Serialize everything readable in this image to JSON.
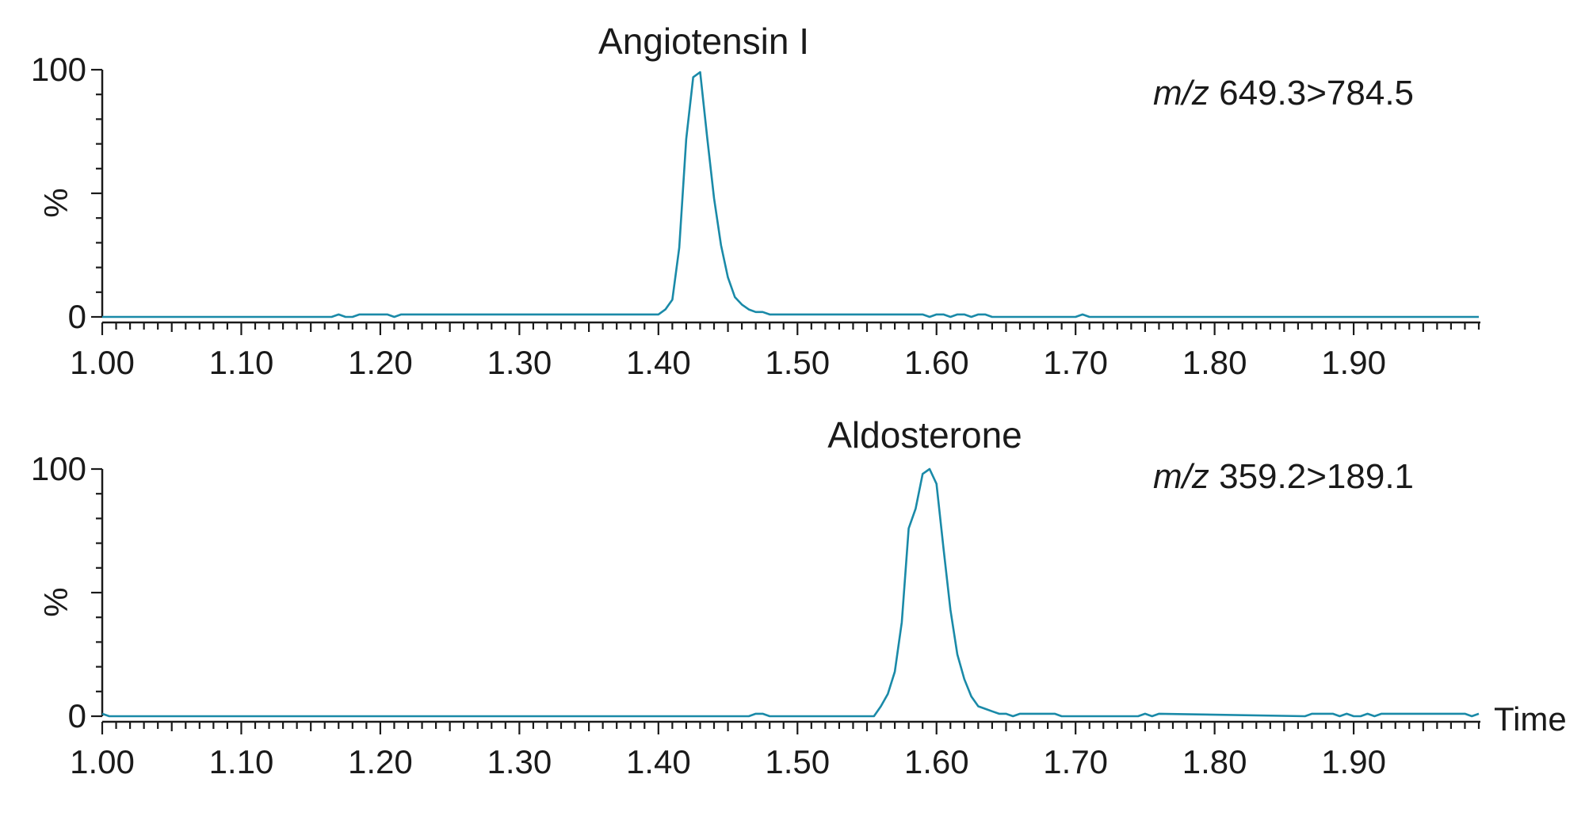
{
  "chart_data": [
    {
      "type": "line",
      "title": "Angiotensin I",
      "annotation": {
        "italic": "m/z",
        "text": " 649.3>784.5"
      },
      "ylabel": "%",
      "xlabel": "",
      "xlim": [
        1.0,
        1.99
      ],
      "ylim": [
        0,
        100
      ],
      "xticks": [
        1.0,
        1.1,
        1.2,
        1.3,
        1.4,
        1.5,
        1.6,
        1.7,
        1.8,
        1.9
      ],
      "xtick_labels": [
        "1.00",
        "1.10",
        "1.20",
        "1.30",
        "1.40",
        "1.50",
        "1.60",
        "1.70",
        "1.80",
        "1.90"
      ],
      "yticks": [
        0,
        100
      ],
      "ytick_labels": [
        "0",
        "100"
      ],
      "color": "#1a8aa8",
      "series": [
        {
          "x": [
            1.0,
            1.165,
            1.17,
            1.175,
            1.18,
            1.185,
            1.205,
            1.21,
            1.215,
            1.4,
            1.405,
            1.41,
            1.415,
            1.42,
            1.425,
            1.43,
            1.435,
            1.44,
            1.445,
            1.45,
            1.455,
            1.46,
            1.465,
            1.47,
            1.475,
            1.48,
            1.485,
            1.59,
            1.595,
            1.6,
            1.605,
            1.61,
            1.615,
            1.62,
            1.625,
            1.63,
            1.635,
            1.64,
            1.645,
            1.7,
            1.705,
            1.71,
            1.99
          ],
          "y": [
            0,
            0,
            1,
            0,
            0,
            1,
            1,
            0,
            1,
            1,
            3,
            7,
            28,
            72,
            97,
            99,
            73,
            48,
            29,
            16,
            8,
            5,
            3,
            2,
            2,
            1,
            1,
            1,
            0,
            1,
            1,
            0,
            1,
            1,
            0,
            1,
            1,
            0,
            0,
            0,
            1,
            0,
            0
          ]
        }
      ]
    },
    {
      "type": "line",
      "title": "Aldosterone",
      "annotation": {
        "italic": "m/z",
        "text": " 359.2>189.1"
      },
      "ylabel": "%",
      "xlabel": "Time",
      "xlim": [
        1.0,
        1.99
      ],
      "ylim": [
        0,
        100
      ],
      "xticks": [
        1.0,
        1.1,
        1.2,
        1.3,
        1.4,
        1.5,
        1.6,
        1.7,
        1.8,
        1.9
      ],
      "xtick_labels": [
        "1.00",
        "1.10",
        "1.20",
        "1.30",
        "1.40",
        "1.50",
        "1.60",
        "1.70",
        "1.80",
        "1.90"
      ],
      "yticks": [
        0,
        100
      ],
      "ytick_labels": [
        "0",
        "100"
      ],
      "color": "#1a8aa8",
      "series": [
        {
          "x": [
            1.0,
            1.005,
            1.01,
            1.465,
            1.47,
            1.475,
            1.48,
            1.485,
            1.555,
            1.56,
            1.565,
            1.57,
            1.575,
            1.58,
            1.585,
            1.59,
            1.595,
            1.6,
            1.605,
            1.61,
            1.615,
            1.62,
            1.625,
            1.63,
            1.635,
            1.64,
            1.645,
            1.65,
            1.655,
            1.66,
            1.665,
            1.685,
            1.69,
            1.745,
            1.75,
            1.755,
            1.76,
            1.865,
            1.87,
            1.885,
            1.89,
            1.895,
            1.9,
            1.905,
            1.91,
            1.915,
            1.92,
            1.925,
            1.93,
            1.98,
            1.985,
            1.99
          ],
          "y": [
            1,
            0,
            0,
            0,
            1,
            1,
            0,
            0,
            0,
            4,
            9,
            18,
            38,
            76,
            84,
            98,
            100,
            94,
            68,
            43,
            25,
            15,
            8,
            4,
            3,
            2,
            1,
            1,
            0,
            1,
            1,
            1,
            0,
            0,
            1,
            0,
            1,
            0,
            1,
            1,
            0,
            1,
            0,
            0,
            1,
            0,
            1,
            1,
            1,
            1,
            0,
            1
          ]
        }
      ]
    }
  ]
}
